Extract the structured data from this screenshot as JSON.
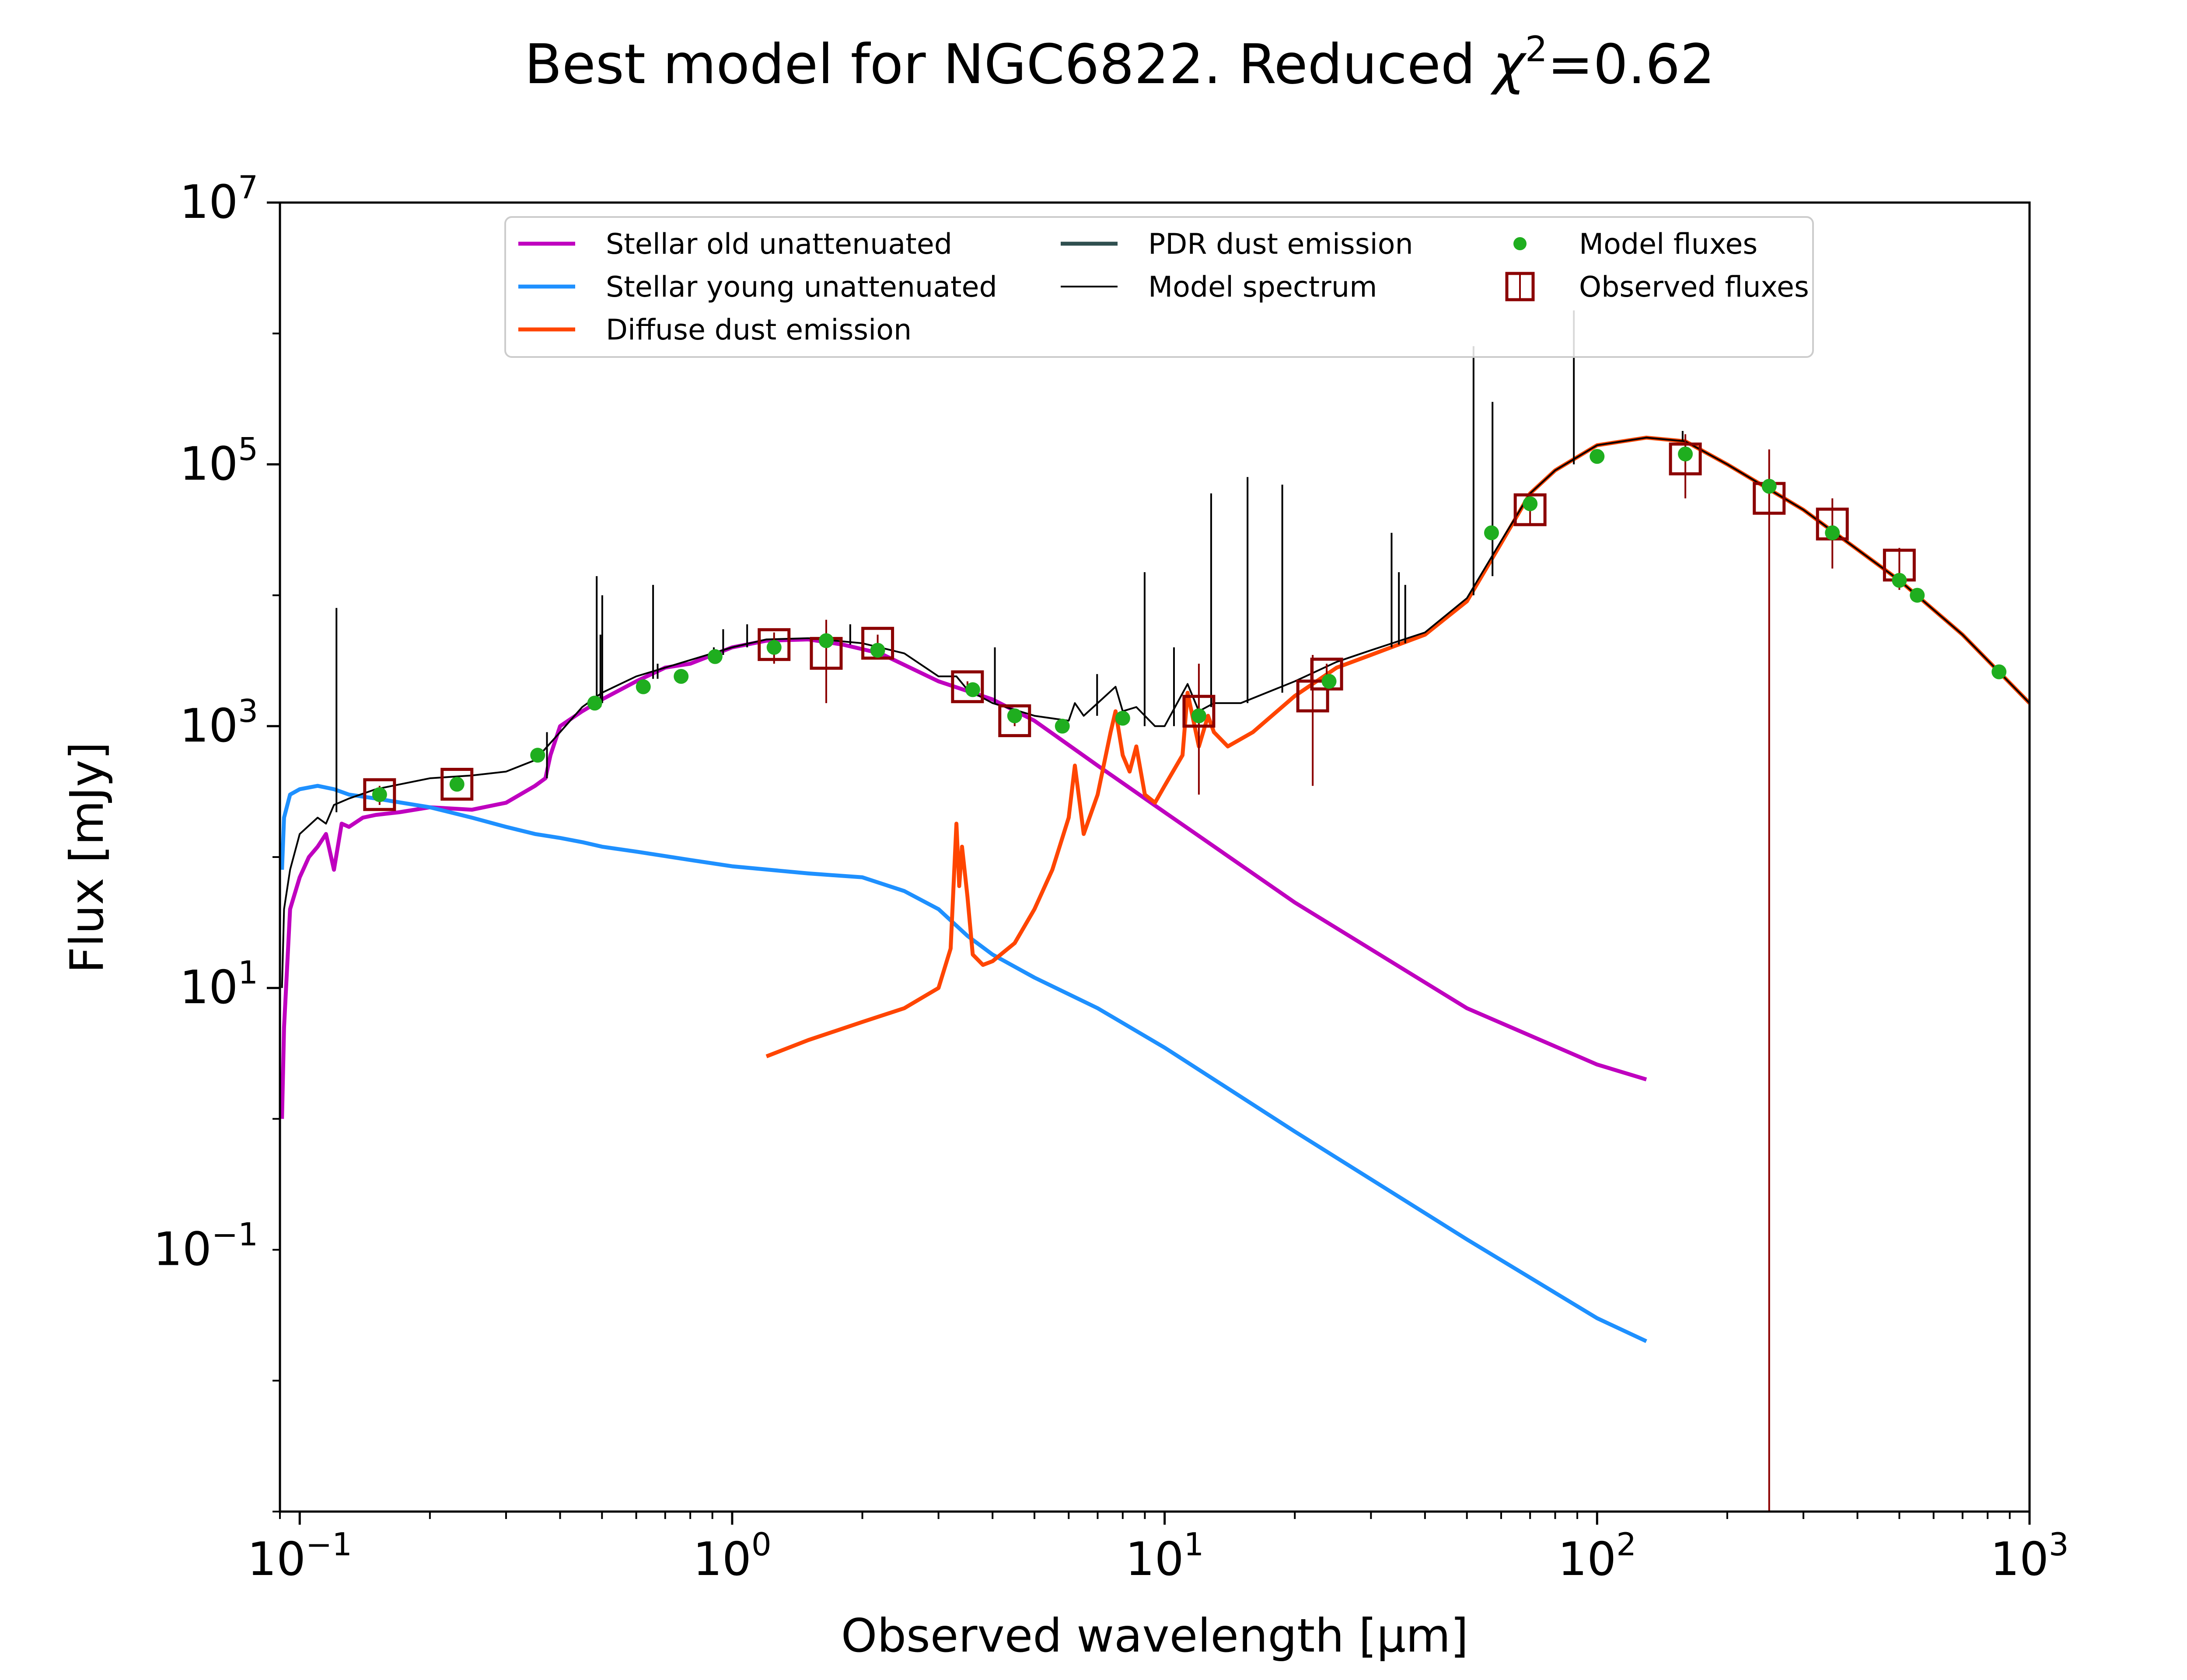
{
  "chart_data": {
    "type": "line",
    "title": "Best model for NGC6822. Reduced χ²=0.62",
    "title_main": "Best model for NGC6822. Reduced ",
    "title_chi": "χ",
    "title_sup": "2",
    "title_value": "=0.62",
    "xlabel": "Observed wavelength [μm]",
    "ylabel": "Flux [mJy]",
    "x_scale": "log",
    "y_scale": "log",
    "xlim": [
      0.09,
      1000
    ],
    "ylim": [
      0.001,
      10000000
    ],
    "grid": false,
    "legend_placement": "upper center",
    "x_ticks": [
      {
        "value": 0.1,
        "base": "10",
        "exp": "−1"
      },
      {
        "value": 1,
        "base": "10",
        "exp": "0"
      },
      {
        "value": 10,
        "base": "10",
        "exp": "1"
      },
      {
        "value": 100,
        "base": "10",
        "exp": "2"
      },
      {
        "value": 1000,
        "base": "10",
        "exp": "3"
      }
    ],
    "y_ticks": [
      {
        "value": 0.1,
        "base": "10",
        "exp": "−1"
      },
      {
        "value": 10,
        "base": "10",
        "exp": "1"
      },
      {
        "value": 1000,
        "base": "10",
        "exp": "3"
      },
      {
        "value": 100000,
        "base": "10",
        "exp": "5"
      },
      {
        "value": 10000000,
        "base": "10",
        "exp": "7"
      }
    ],
    "legend": [
      {
        "label": "Stellar old unattenuated",
        "kind": "line",
        "color": "#bf00bf"
      },
      {
        "label": "Stellar young unattenuated",
        "kind": "line",
        "color": "#1e90ff"
      },
      {
        "label": "Diffuse dust emission",
        "kind": "line",
        "color": "#ff4500"
      },
      {
        "label": "PDR dust emission",
        "kind": "line",
        "color": "#2f4f4f"
      },
      {
        "label": "Model spectrum",
        "kind": "thinline",
        "color": "#000000"
      },
      {
        "label": "Model fluxes",
        "kind": "dot",
        "color": "#1fae1f"
      },
      {
        "label": "Observed fluxes",
        "kind": "square",
        "color": "#8b0000"
      }
    ],
    "series": [
      {
        "name": "Stellar old unattenuated",
        "color": "#bf00bf",
        "x": [
          0.091,
          0.092,
          0.095,
          0.1,
          0.105,
          0.11,
          0.115,
          0.12,
          0.125,
          0.13,
          0.14,
          0.15,
          0.17,
          0.2,
          0.25,
          0.3,
          0.35,
          0.37,
          0.38,
          0.4,
          0.45,
          0.5,
          0.6,
          0.7,
          0.8,
          1.0,
          1.2,
          1.5,
          1.8,
          2.2,
          3.0,
          4.0,
          5.0,
          7.0,
          10,
          20,
          50,
          100,
          130
        ],
        "y": [
          1,
          5,
          40,
          70,
          100,
          120,
          150,
          80,
          180,
          170,
          200,
          210,
          220,
          240,
          230,
          260,
          350,
          400,
          600,
          1000,
          1300,
          1600,
          2200,
          2800,
          3000,
          4000,
          4500,
          4600,
          4200,
          3600,
          2200,
          1600,
          1100,
          500,
          220,
          45,
          7,
          2.6,
          2
        ]
      },
      {
        "name": "Stellar young unattenuated",
        "color": "#1e90ff",
        "x": [
          0.091,
          0.092,
          0.095,
          0.1,
          0.11,
          0.12,
          0.13,
          0.15,
          0.2,
          0.25,
          0.3,
          0.35,
          0.4,
          0.45,
          0.5,
          0.6,
          0.8,
          1.0,
          1.5,
          2.0,
          2.5,
          3.0,
          3.5,
          4.0,
          5.0,
          7.0,
          10,
          20,
          50,
          100,
          130
        ],
        "y": [
          80,
          200,
          300,
          330,
          350,
          330,
          300,
          280,
          240,
          200,
          170,
          150,
          140,
          130,
          120,
          110,
          95,
          85,
          75,
          70,
          55,
          40,
          25,
          18,
          12,
          7,
          3.5,
          0.8,
          0.12,
          0.03,
          0.02
        ]
      },
      {
        "name": "Diffuse dust emission",
        "color": "#ff4500",
        "x": [
          1.2,
          1.5,
          2.0,
          2.5,
          3.0,
          3.2,
          3.3,
          3.35,
          3.4,
          3.5,
          3.6,
          3.8,
          4.0,
          4.5,
          5.0,
          5.5,
          6.0,
          6.2,
          6.5,
          7.0,
          7.5,
          7.7,
          8.0,
          8.3,
          8.6,
          9.0,
          9.5,
          10,
          11,
          11.3,
          12,
          12.6,
          13,
          14,
          16,
          20,
          25,
          30,
          40,
          50,
          60,
          70,
          80,
          100,
          130,
          160,
          200,
          300,
          500,
          700,
          1000
        ],
        "y": [
          3,
          4,
          5.5,
          7,
          10,
          20,
          180,
          60,
          120,
          50,
          18,
          15,
          16,
          22,
          40,
          80,
          200,
          500,
          150,
          300,
          900,
          1300,
          600,
          450,
          700,
          300,
          260,
          350,
          600,
          1800,
          700,
          1200,
          900,
          700,
          900,
          1700,
          2800,
          3500,
          5000,
          9000,
          25000,
          60000,
          90000,
          140000,
          160000,
          150000,
          100000,
          45000,
          13000,
          5000,
          1500
        ]
      },
      {
        "name": "Model spectrum",
        "color": "#000000",
        "x": [
          0.091,
          0.092,
          0.095,
          0.1,
          0.11,
          0.115,
          0.12,
          0.13,
          0.15,
          0.2,
          0.25,
          0.3,
          0.35,
          0.4,
          0.45,
          0.5,
          0.6,
          0.8,
          1.0,
          1.2,
          1.5,
          2.0,
          2.5,
          3.0,
          3.3,
          3.5,
          4.0,
          5.0,
          6.0,
          6.2,
          6.5,
          7.0,
          7.7,
          8.0,
          8.6,
          9.5,
          10,
          11.3,
          12,
          13,
          15,
          20,
          25,
          30,
          40,
          50,
          60,
          70,
          80,
          100,
          130,
          160,
          200,
          300,
          500,
          700,
          1000
        ],
        "y": [
          10,
          40,
          80,
          150,
          200,
          180,
          250,
          280,
          330,
          400,
          420,
          450,
          550,
          900,
          1400,
          1800,
          2400,
          3200,
          4000,
          4600,
          4700,
          4300,
          3600,
          2400,
          2400,
          1900,
          1500,
          1200,
          1100,
          1500,
          1200,
          1500,
          2000,
          1300,
          1400,
          1000,
          1000,
          2100,
          1300,
          1500,
          1500,
          2200,
          3100,
          3800,
          5200,
          9500,
          26000,
          60000,
          90000,
          140000,
          160000,
          150000,
          100000,
          45000,
          13000,
          5000,
          1500
        ]
      }
    ],
    "emission_lines": [
      {
        "x": 0.1216,
        "y_top": 8000,
        "y_base": 220
      },
      {
        "x": 0.373,
        "y_top": 400,
        "y_base": 900
      },
      {
        "x": 0.4861,
        "y_top": 14000,
        "y_base": 1400
      },
      {
        "x": 0.4959,
        "y_top": 5000,
        "y_base": 1400
      },
      {
        "x": 0.5007,
        "y_top": 10000,
        "y_base": 1500
      },
      {
        "x": 0.6563,
        "y_top": 12000,
        "y_base": 2300
      },
      {
        "x": 0.6724,
        "y_top": 3000,
        "y_base": 2300
      },
      {
        "x": 0.9069,
        "y_top": 4000,
        "y_base": 3400
      },
      {
        "x": 0.9532,
        "y_top": 5500,
        "y_base": 3500
      },
      {
        "x": 1.083,
        "y_top": 6000,
        "y_base": 4000
      },
      {
        "x": 1.875,
        "y_top": 6000,
        "y_base": 4200
      },
      {
        "x": 4.05,
        "y_top": 4000,
        "y_base": 1500
      },
      {
        "x": 6.98,
        "y_top": 2500,
        "y_base": 1200
      },
      {
        "x": 8.99,
        "y_top": 15000,
        "y_base": 1000
      },
      {
        "x": 10.51,
        "y_top": 4000,
        "y_base": 1000
      },
      {
        "x": 12.81,
        "y_top": 60000,
        "y_base": 1400
      },
      {
        "x": 15.55,
        "y_top": 80000,
        "y_base": 1500
      },
      {
        "x": 18.71,
        "y_top": 70000,
        "y_base": 1800
      },
      {
        "x": 33.48,
        "y_top": 30000,
        "y_base": 4000
      },
      {
        "x": 34.81,
        "y_top": 15000,
        "y_base": 4200
      },
      {
        "x": 36.01,
        "y_top": 12000,
        "y_base": 4300
      },
      {
        "x": 51.8,
        "y_top": 800000,
        "y_base": 10000
      },
      {
        "x": 57.3,
        "y_top": 300000,
        "y_base": 14000
      },
      {
        "x": 88.36,
        "y_top": 1500000,
        "y_base": 100000
      },
      {
        "x": 157.7,
        "y_top": 180000,
        "y_base": 150000
      }
    ],
    "model_fluxes": {
      "x": [
        0.153,
        0.231,
        0.355,
        0.481,
        0.623,
        0.762,
        0.913,
        1.25,
        1.65,
        2.17,
        3.6,
        4.5,
        5.8,
        8.0,
        12,
        24,
        57,
        70,
        100,
        160,
        250,
        350,
        500,
        550,
        850
      ],
      "y": [
        300,
        360,
        600,
        1500,
        2000,
        2400,
        3400,
        4000,
        4500,
        3800,
        1900,
        1200,
        1000,
        1150,
        1200,
        2200,
        30000,
        50000,
        115000,
        120000,
        68000,
        30000,
        13000,
        10000,
        2600
      ]
    },
    "observed_fluxes": [
      {
        "x": 0.153,
        "y": 300,
        "lo": 250,
        "hi": 350
      },
      {
        "x": 0.231,
        "y": 360,
        "lo": 320,
        "hi": 400
      },
      {
        "x": 1.25,
        "y": 4200,
        "lo": 3000,
        "hi": 5200
      },
      {
        "x": 1.65,
        "y": 3600,
        "lo": 1500,
        "hi": 6500
      },
      {
        "x": 2.17,
        "y": 4300,
        "lo": 3500,
        "hi": 5000
      },
      {
        "x": 3.5,
        "y": 2000,
        "lo": 1800,
        "hi": 2200
      },
      {
        "x": 4.5,
        "y": 1100,
        "lo": 1000,
        "hi": 1200
      },
      {
        "x": 12,
        "y": 1300,
        "lo": 300,
        "hi": 3000
      },
      {
        "x": 22,
        "y": 1700,
        "lo": 350,
        "hi": 3500
      },
      {
        "x": 23.7,
        "y": 2500,
        "lo": 2000,
        "hi": 3000
      },
      {
        "x": 70,
        "y": 45000,
        "lo": 35000,
        "hi": 55000
      },
      {
        "x": 160,
        "y": 110000,
        "lo": 55000,
        "hi": 170000
      },
      {
        "x": 250,
        "y": 55000,
        "lo": 0.001,
        "hi": 130000
      },
      {
        "x": 350,
        "y": 35000,
        "lo": 16000,
        "hi": 55000
      },
      {
        "x": 500,
        "y": 17000,
        "lo": 11000,
        "hi": 23000
      }
    ]
  }
}
